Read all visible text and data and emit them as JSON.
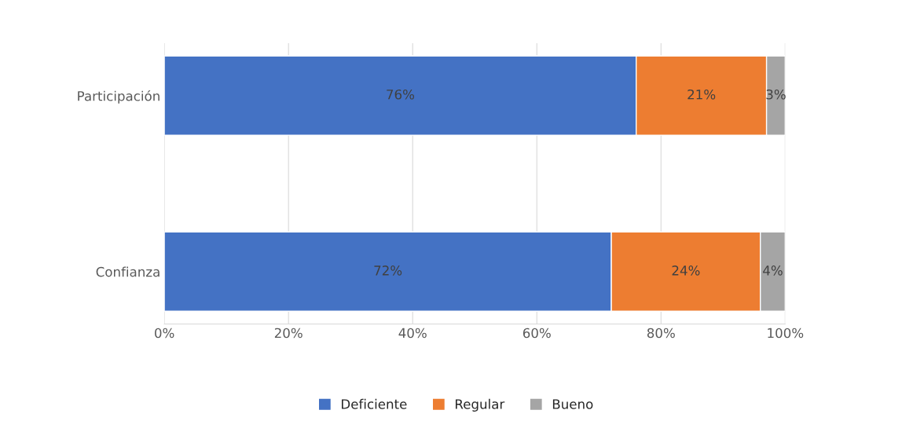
{
  "chart_data": {
    "type": "bar",
    "orientation": "horizontal",
    "stacked": true,
    "categories": [
      "Participación",
      "Confianza"
    ],
    "series": [
      {
        "name": "Deficiente",
        "color": "#4472c4",
        "values": [
          76,
          72
        ],
        "value_labels": [
          "76%",
          "72%"
        ]
      },
      {
        "name": "Regular",
        "color": "#ed7d31",
        "values": [
          21,
          24
        ],
        "value_labels": [
          "21%",
          "24%"
        ]
      },
      {
        "name": "Bueno",
        "color": "#a5a5a5",
        "values": [
          3,
          4
        ],
        "value_labels": [
          "3%",
          "4%"
        ]
      }
    ],
    "xlim": [
      0,
      100
    ],
    "xticks": [
      {
        "value": 0,
        "label": "0%"
      },
      {
        "value": 20,
        "label": "20%"
      },
      {
        "value": 40,
        "label": "40%"
      },
      {
        "value": 60,
        "label": "60%"
      },
      {
        "value": 80,
        "label": "80%"
      },
      {
        "value": 100,
        "label": "100%"
      }
    ],
    "grid": "x",
    "legend": "bottom"
  }
}
